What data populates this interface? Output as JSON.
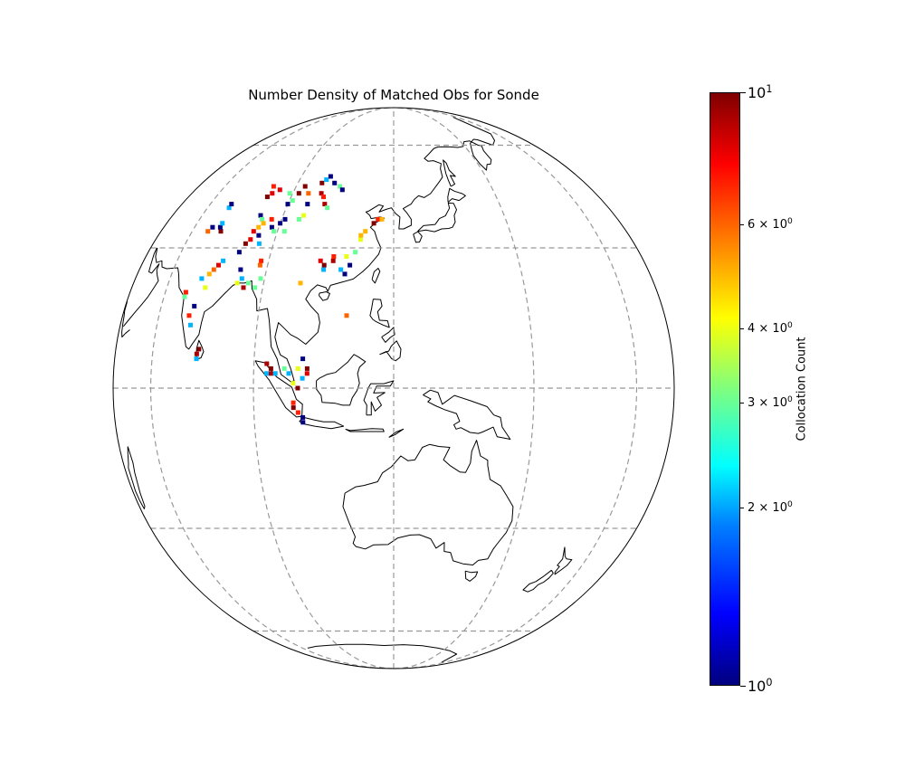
{
  "figure": {
    "title": "Number Density of Matched Obs for Sonde"
  },
  "colorbar": {
    "label": "Collocation Count",
    "scale": "log",
    "colormap": "jet",
    "range": [
      1,
      10
    ],
    "ticks": [
      {
        "value": 1,
        "base": "10",
        "exp": "0",
        "major": true
      },
      {
        "value": 2,
        "base": "2 × 10",
        "exp": "0",
        "major": false
      },
      {
        "value": 3,
        "base": "3 × 10",
        "exp": "0",
        "major": false
      },
      {
        "value": 4,
        "base": "4 × 10",
        "exp": "0",
        "major": false
      },
      {
        "value": 6,
        "base": "6 × 10",
        "exp": "0",
        "major": false
      },
      {
        "value": 10,
        "base": "10",
        "exp": "1",
        "major": true
      }
    ]
  },
  "map": {
    "projection": "orthographic",
    "center_lon": 125,
    "center_lat": 0,
    "gridlines": "dashed",
    "observations": [
      {
        "lon": 80,
        "lat": 7,
        "count": 9
      },
      {
        "lon": 80,
        "lat": 6,
        "count": 2
      },
      {
        "lon": 80.5,
        "lat": 8,
        "count": 10
      },
      {
        "lon": 77,
        "lat": 13,
        "count": 2
      },
      {
        "lon": 76,
        "lat": 15,
        "count": 7
      },
      {
        "lon": 77,
        "lat": 17,
        "count": 1
      },
      {
        "lon": 73,
        "lat": 19,
        "count": 3
      },
      {
        "lon": 73,
        "lat": 20,
        "count": 7
      },
      {
        "lon": 79,
        "lat": 21,
        "count": 4
      },
      {
        "lon": 77,
        "lat": 23,
        "count": 2
      },
      {
        "lon": 79,
        "lat": 24,
        "count": 5
      },
      {
        "lon": 80,
        "lat": 25,
        "count": 6
      },
      {
        "lon": 81,
        "lat": 26,
        "count": 8
      },
      {
        "lon": 82,
        "lat": 27,
        "count": 2
      },
      {
        "lon": 88,
        "lat": 22,
        "count": 4
      },
      {
        "lon": 72,
        "lat": 34,
        "count": 6
      },
      {
        "lon": 73,
        "lat": 35,
        "count": 1
      },
      {
        "lon": 77,
        "lat": 34,
        "count": 10
      },
      {
        "lon": 76,
        "lat": 35,
        "count": 1
      },
      {
        "lon": 76,
        "lat": 36,
        "count": 2
      },
      {
        "lon": 75,
        "lat": 40,
        "count": 2
      },
      {
        "lon": 75,
        "lat": 41,
        "count": 1
      },
      {
        "lon": 87,
        "lat": 43,
        "count": 10
      },
      {
        "lon": 88,
        "lat": 44,
        "count": 8
      },
      {
        "lon": 87,
        "lat": 46,
        "count": 7
      },
      {
        "lon": 90,
        "lat": 45,
        "count": 8
      },
      {
        "lon": 94,
        "lat": 44,
        "count": 3
      },
      {
        "lon": 97,
        "lat": 44,
        "count": 10
      },
      {
        "lon": 98,
        "lat": 46,
        "count": 10
      },
      {
        "lon": 100,
        "lat": 44,
        "count": 6
      },
      {
        "lon": 104,
        "lat": 44,
        "count": 9
      },
      {
        "lon": 105,
        "lat": 43,
        "count": 7
      },
      {
        "lon": 96,
        "lat": 42,
        "count": 3
      },
      {
        "lon": 95,
        "lat": 41,
        "count": 1
      },
      {
        "lon": 101,
        "lat": 41,
        "count": 1
      },
      {
        "lon": 106,
        "lat": 41,
        "count": 9
      },
      {
        "lon": 107,
        "lat": 40,
        "count": 3
      },
      {
        "lon": 103,
        "lat": 47,
        "count": 10
      },
      {
        "lon": 104,
        "lat": 48,
        "count": 2
      },
      {
        "lon": 105,
        "lat": 49,
        "count": 1
      },
      {
        "lon": 107,
        "lat": 47,
        "count": 1
      },
      {
        "lon": 109,
        "lat": 46,
        "count": 3
      },
      {
        "lon": 110,
        "lat": 45,
        "count": 1
      },
      {
        "lon": 88,
        "lat": 38,
        "count": 1
      },
      {
        "lon": 89,
        "lat": 37,
        "count": 3
      },
      {
        "lon": 90,
        "lat": 36,
        "count": 5
      },
      {
        "lon": 89,
        "lat": 35,
        "count": 5
      },
      {
        "lon": 88,
        "lat": 34,
        "count": 8
      },
      {
        "lon": 90,
        "lat": 33,
        "count": 1
      },
      {
        "lon": 88,
        "lat": 32,
        "count": 8
      },
      {
        "lon": 87,
        "lat": 31,
        "count": 10
      },
      {
        "lon": 86,
        "lat": 29,
        "count": 1
      },
      {
        "lon": 93,
        "lat": 35,
        "count": 1
      },
      {
        "lon": 95,
        "lat": 36,
        "count": 1
      },
      {
        "lon": 94,
        "lat": 34,
        "count": 3
      },
      {
        "lon": 97,
        "lat": 34,
        "count": 3
      },
      {
        "lon": 92,
        "lat": 37,
        "count": 7
      },
      {
        "lon": 96,
        "lat": 37,
        "count": 1
      },
      {
        "lon": 100,
        "lat": 37,
        "count": 3
      },
      {
        "lon": 101,
        "lat": 38,
        "count": 4
      },
      {
        "lon": 91,
        "lat": 31,
        "count": 2
      },
      {
        "lon": 88,
        "lat": 25,
        "count": 1
      },
      {
        "lon": 89,
        "lat": 23,
        "count": 2
      },
      {
        "lon": 90,
        "lat": 21,
        "count": 9
      },
      {
        "lon": 91,
        "lat": 22,
        "count": 3
      },
      {
        "lon": 93,
        "lat": 26,
        "count": 6
      },
      {
        "lon": 93,
        "lat": 27,
        "count": 7
      },
      {
        "lon": 94,
        "lat": 23,
        "count": 3
      },
      {
        "lon": 93,
        "lat": 21,
        "count": 3
      },
      {
        "lon": 104,
        "lat": 22,
        "count": 5
      },
      {
        "lon": 108,
        "lat": 27,
        "count": 8
      },
      {
        "lon": 109,
        "lat": 26,
        "count": 10
      },
      {
        "lon": 109,
        "lat": 25,
        "count": 2
      },
      {
        "lon": 111,
        "lat": 27,
        "count": 9
      },
      {
        "lon": 111,
        "lat": 28,
        "count": 7
      },
      {
        "lon": 113,
        "lat": 25,
        "count": 2
      },
      {
        "lon": 114,
        "lat": 24,
        "count": 1
      },
      {
        "lon": 115,
        "lat": 26,
        "count": 1
      },
      {
        "lon": 114,
        "lat": 28,
        "count": 4
      },
      {
        "lon": 116,
        "lat": 29,
        "count": 3
      },
      {
        "lon": 117,
        "lat": 32,
        "count": 4
      },
      {
        "lon": 117,
        "lat": 33,
        "count": 5
      },
      {
        "lon": 118,
        "lat": 34,
        "count": 5
      },
      {
        "lon": 121,
        "lat": 37,
        "count": 7
      },
      {
        "lon": 122,
        "lat": 37,
        "count": 5
      },
      {
        "lon": 120,
        "lat": 36,
        "count": 10
      },
      {
        "lon": 115,
        "lat": 15,
        "count": 6
      },
      {
        "lon": 98,
        "lat": 5,
        "count": 9
      },
      {
        "lon": 99,
        "lat": 4,
        "count": 10
      },
      {
        "lon": 99,
        "lat": 3,
        "count": 9
      },
      {
        "lon": 98,
        "lat": 3,
        "count": 2
      },
      {
        "lon": 100,
        "lat": 3,
        "count": 2
      },
      {
        "lon": 102,
        "lat": 4,
        "count": 3
      },
      {
        "lon": 103,
        "lat": 3,
        "count": 2
      },
      {
        "lon": 105,
        "lat": 4,
        "count": 4
      },
      {
        "lon": 106,
        "lat": 2,
        "count": 2
      },
      {
        "lon": 104,
        "lat": 1,
        "count": 4
      },
      {
        "lon": 105,
        "lat": 0,
        "count": 10
      },
      {
        "lon": 107,
        "lat": 3,
        "count": 8
      },
      {
        "lon": 107,
        "lat": 4,
        "count": 10
      },
      {
        "lon": 106,
        "lat": 6,
        "count": 1
      },
      {
        "lon": 104,
        "lat": -3,
        "count": 7
      },
      {
        "lon": 104,
        "lat": -4,
        "count": 10
      },
      {
        "lon": 105,
        "lat": -5,
        "count": 7
      },
      {
        "lon": 106,
        "lat": -6,
        "count": 1
      },
      {
        "lon": 106,
        "lat": -7,
        "count": 1
      }
    ]
  }
}
